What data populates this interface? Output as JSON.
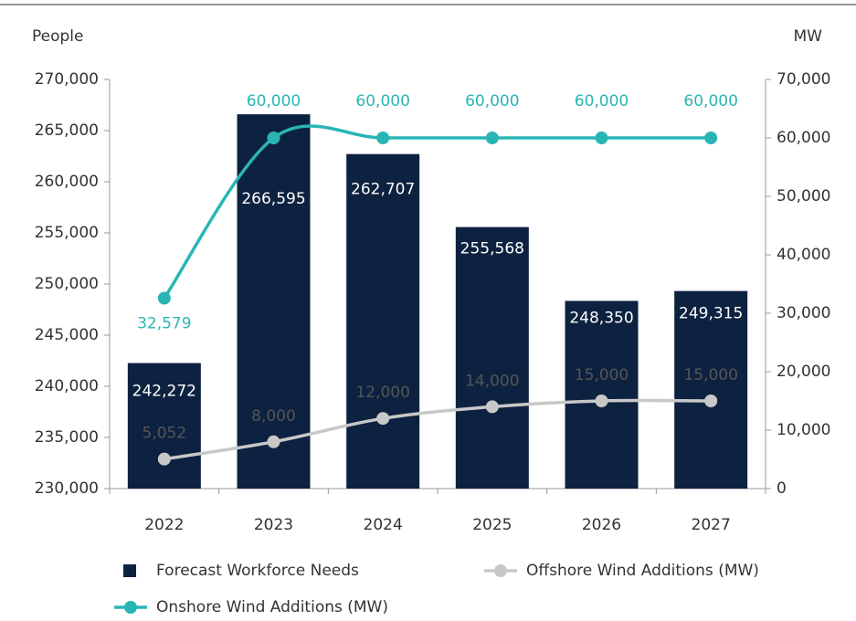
{
  "chart_data": {
    "type": "bar-line",
    "y_label": "People",
    "y2_label": "MW",
    "categories": [
      "2022",
      "2023",
      "2024",
      "2025",
      "2026",
      "2027"
    ],
    "series": [
      {
        "name": "Forecast Workforce Needs",
        "type": "bar",
        "color": "#0d2240",
        "values": [
          242272,
          266595,
          262707,
          255568,
          248350,
          249315
        ],
        "value_labels": [
          "242,272",
          "266,595",
          "262,707",
          "255,568",
          "248,350",
          "249,315"
        ]
      },
      {
        "name": "Offshore Wind Additions (MW)",
        "type": "line",
        "axis": "y2",
        "color": "#c8c8c8",
        "values": [
          5052,
          8000,
          12000,
          14000,
          15000,
          15000
        ],
        "value_labels": [
          "5,052",
          "8,000",
          "12,000",
          "14,000",
          "15,000",
          "15,000"
        ]
      },
      {
        "name": "Onshore Wind Additions (MW)",
        "type": "line",
        "axis": "y2",
        "color": "#2ab5b5",
        "values": [
          32579,
          60000,
          60000,
          60000,
          60000,
          60000
        ],
        "value_labels": [
          "32,579",
          "60,000",
          "60,000",
          "60,000",
          "60,000",
          "60,000"
        ]
      }
    ],
    "ylim": [
      230000,
      270000
    ],
    "yticks": [
      {
        "value": 230000,
        "label": "230,000"
      },
      {
        "value": 235000,
        "label": "235,000"
      },
      {
        "value": 240000,
        "label": "240,000"
      },
      {
        "value": 245000,
        "label": "245,000"
      },
      {
        "value": 250000,
        "label": "250,000"
      },
      {
        "value": 255000,
        "label": "255,000"
      },
      {
        "value": 260000,
        "label": "260,000"
      },
      {
        "value": 265000,
        "label": "265,000"
      },
      {
        "value": 270000,
        "label": "270,000"
      }
    ],
    "y2lim": [
      0,
      70000
    ],
    "y2ticks": [
      0,
      {
        "value": 10000,
        "label": "10,000"
      },
      {
        "value": 20000,
        "label": "20,000"
      },
      {
        "value": 30000,
        "label": "30,000"
      },
      {
        "value": 40000,
        "label": "40,000"
      },
      {
        "value": 50000,
        "label": "50,000"
      },
      {
        "value": 60000,
        "label": "60,000"
      },
      {
        "value": 70000,
        "label": "70,000"
      }
    ],
    "grid": false,
    "legend": "bottom"
  }
}
